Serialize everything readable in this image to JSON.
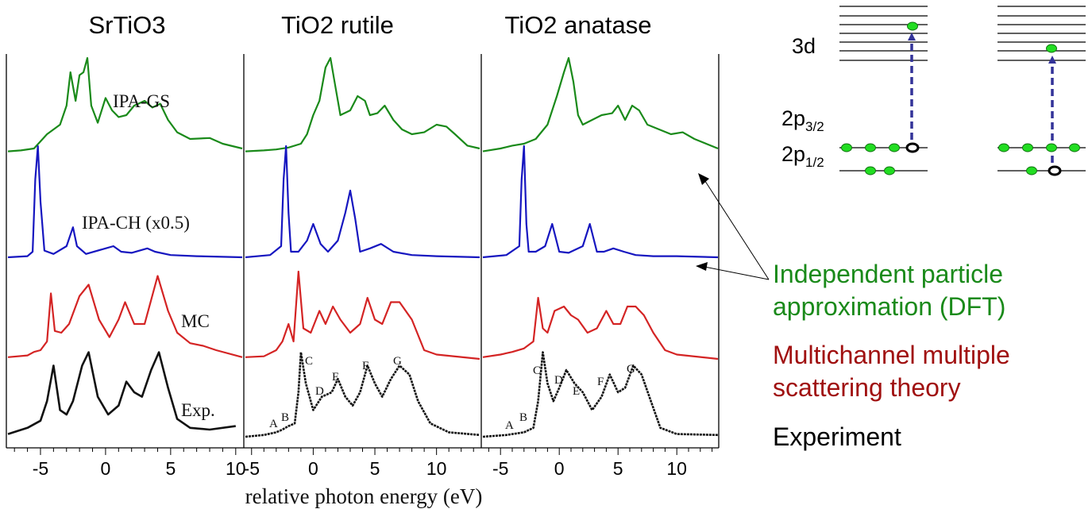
{
  "colors": {
    "ipa_gs": "#1a8a1a",
    "ipa_ch": "#1616c0",
    "mc": "#d42424",
    "exp": "#111111",
    "transition_arrow": "#333399",
    "electron": "#22dd22"
  },
  "chart_data": {
    "type": "line",
    "xlabel": "relative photon energy (eV)",
    "panels": [
      {
        "title": "SrTiO3",
        "xlim": [
          -7.5,
          10.5
        ],
        "xticks": [
          "-5",
          "0",
          "5",
          "10"
        ],
        "annotations": {
          "ipa_gs": "IPA-GS",
          "ipa_ch": "IPA-CH (x0.5)",
          "mc": "MC",
          "exp": "Exp."
        },
        "series": [
          {
            "name": "IPA-GS",
            "x": [
              -7.5,
              -6.5,
              -5.5,
              -4.5,
              -3.5,
              -3,
              -2.7,
              -2.3,
              -2,
              -1.7,
              -1.4,
              -1.1,
              -0.6,
              0,
              0.5,
              1,
              1.6,
              2.2,
              3,
              3.6,
              4.2,
              4.8,
              5.5,
              6.5,
              8,
              9,
              10.5
            ],
            "y": [
              0.02,
              0.03,
              0.05,
              0.2,
              0.3,
              0.5,
              0.85,
              0.55,
              0.82,
              0.85,
              1.0,
              0.5,
              0.32,
              0.58,
              0.45,
              0.38,
              0.4,
              0.5,
              0.55,
              0.48,
              0.52,
              0.35,
              0.22,
              0.15,
              0.16,
              0.1,
              0.05
            ]
          },
          {
            "name": "IPA-CH (x0.5)",
            "x": [
              -7.5,
              -6,
              -5.6,
              -5.4,
              -5.2,
              -5,
              -4.7,
              -4,
              -3,
              -2.5,
              -2.2,
              -1.5,
              0,
              0.6,
              1.2,
              2,
              3.2,
              3.8,
              5,
              7,
              10.5
            ],
            "y": [
              0.0,
              0.01,
              0.05,
              0.7,
              1.0,
              0.5,
              0.06,
              0.03,
              0.1,
              0.27,
              0.1,
              0.03,
              0.08,
              0.1,
              0.05,
              0.04,
              0.08,
              0.05,
              0.02,
              0.01,
              0.0
            ]
          },
          {
            "name": "MC",
            "x": [
              -7.5,
              -6,
              -5.5,
              -5,
              -4.5,
              -4.2,
              -3.9,
              -3.4,
              -2.8,
              -2,
              -1.3,
              -0.5,
              0.3,
              1,
              1.5,
              2.2,
              3,
              4,
              4.8,
              5.5,
              6.5,
              7.5,
              8.5,
              10.5
            ],
            "y": [
              0.02,
              0.04,
              0.08,
              0.1,
              0.2,
              0.75,
              0.32,
              0.3,
              0.4,
              0.72,
              0.85,
              0.45,
              0.25,
              0.45,
              0.65,
              0.4,
              0.4,
              0.95,
              0.55,
              0.3,
              0.18,
              0.15,
              0.1,
              0.02
            ]
          },
          {
            "name": "Exp.",
            "x": [
              -7.5,
              -6,
              -5,
              -4.5,
              -4,
              -3.5,
              -3,
              -2.5,
              -1.8,
              -1.3,
              -0.6,
              0.2,
              1,
              1.6,
              2.2,
              2.8,
              3.5,
              4.1,
              4.8,
              5.5,
              6.5,
              8,
              10
            ],
            "y": [
              0.03,
              0.1,
              0.18,
              0.4,
              0.8,
              0.3,
              0.25,
              0.4,
              0.8,
              0.95,
              0.45,
              0.25,
              0.35,
              0.62,
              0.5,
              0.45,
              0.75,
              0.95,
              0.55,
              0.2,
              0.1,
              0.08,
              0.12
            ]
          }
        ]
      },
      {
        "title": "TiO2 rutile",
        "xlim": [
          -5.5,
          13.5
        ],
        "xticks": [
          "-5",
          "0",
          "5",
          "10"
        ],
        "exp_labels": [
          "A",
          "B",
          "C",
          "D",
          "E",
          "F",
          "G"
        ],
        "series": [
          {
            "name": "IPA-GS",
            "x": [
              -5.5,
              -4,
              -3,
              -2,
              -1,
              -0.5,
              0,
              0.5,
              1,
              1.4,
              1.8,
              2.2,
              3,
              3.6,
              4.2,
              4.6,
              5.2,
              5.8,
              6.5,
              7.2,
              8,
              9,
              10,
              10.8,
              11.5,
              12.5,
              13.5
            ],
            "y": [
              0.02,
              0.03,
              0.04,
              0.06,
              0.1,
              0.2,
              0.4,
              0.55,
              0.9,
              1.0,
              0.7,
              0.4,
              0.45,
              0.6,
              0.55,
              0.4,
              0.42,
              0.5,
              0.35,
              0.25,
              0.2,
              0.22,
              0.3,
              0.28,
              0.2,
              0.08,
              0.05
            ]
          },
          {
            "name": "IPA-CH (x0.5)",
            "x": [
              -5.5,
              -3.5,
              -2.6,
              -2.4,
              -2.2,
              -2,
              -1.8,
              -1.2,
              -0.5,
              0,
              0.6,
              1.2,
              2,
              2.6,
              3,
              3.4,
              3.8,
              4.6,
              5.5,
              6.5,
              8,
              10,
              13.5
            ],
            "y": [
              0.0,
              0.02,
              0.1,
              0.7,
              1.0,
              0.4,
              0.05,
              0.05,
              0.15,
              0.3,
              0.12,
              0.05,
              0.15,
              0.4,
              0.6,
              0.35,
              0.05,
              0.08,
              0.12,
              0.05,
              0.02,
              0.01,
              0.0
            ]
          },
          {
            "name": "MC",
            "x": [
              -5.5,
              -4,
              -3,
              -2.5,
              -2,
              -1.6,
              -1.2,
              -0.8,
              -0.2,
              0.5,
              1,
              1.6,
              2.2,
              3,
              3.8,
              4.4,
              5,
              5.6,
              6.3,
              7,
              8,
              9,
              10,
              13.5
            ],
            "y": [
              0.02,
              0.03,
              0.1,
              0.2,
              0.4,
              0.2,
              1.0,
              0.35,
              0.3,
              0.55,
              0.4,
              0.6,
              0.45,
              0.3,
              0.4,
              0.7,
              0.45,
              0.4,
              0.65,
              0.65,
              0.45,
              0.1,
              0.05,
              0.0
            ]
          },
          {
            "name": "Exp.",
            "x": [
              -5.5,
              -4,
              -3,
              -2.5,
              -2,
              -1.5,
              -1.2,
              -1,
              -0.6,
              0,
              0.7,
              1.5,
              2,
              2.6,
              3.2,
              3.8,
              4.4,
              5,
              5.6,
              6.3,
              7,
              7.8,
              8.5,
              9.5,
              11,
              13.5
            ],
            "y": [
              0.0,
              0.02,
              0.05,
              0.08,
              0.12,
              0.15,
              0.5,
              0.95,
              0.6,
              0.3,
              0.45,
              0.5,
              0.65,
              0.45,
              0.35,
              0.5,
              0.8,
              0.6,
              0.45,
              0.65,
              0.8,
              0.7,
              0.4,
              0.15,
              0.05,
              0.02
            ]
          }
        ]
      },
      {
        "title": "TiO2 anatase",
        "xlim": [
          -6.5,
          13.5
        ],
        "xticks": [
          "-5",
          "0",
          "5",
          "10"
        ],
        "exp_labels": [
          "A",
          "B",
          "C",
          "D",
          "E",
          "F",
          "G"
        ],
        "series": [
          {
            "name": "IPA-GS",
            "x": [
              -6.5,
              -5,
              -4,
              -3,
              -2,
              -1,
              -0.2,
              0.4,
              0.8,
              1.2,
              1.6,
              2,
              2.8,
              3.6,
              4.5,
              5,
              5.6,
              6.2,
              6.8,
              7.5,
              8.5,
              9.5,
              10.5,
              11.5,
              13.5
            ],
            "y": [
              0.02,
              0.05,
              0.08,
              0.1,
              0.15,
              0.3,
              0.6,
              0.85,
              1.0,
              0.75,
              0.4,
              0.3,
              0.35,
              0.4,
              0.42,
              0.5,
              0.35,
              0.5,
              0.45,
              0.3,
              0.25,
              0.2,
              0.22,
              0.15,
              0.05
            ]
          },
          {
            "name": "IPA-CH (x0.5)",
            "x": [
              -6.5,
              -4.5,
              -3.4,
              -3.2,
              -3,
              -2.8,
              -2.6,
              -2,
              -1.2,
              -0.6,
              0,
              0.8,
              2,
              2.6,
              3.2,
              3.8,
              4.6,
              5.5,
              6.5,
              8,
              10,
              13.5
            ],
            "y": [
              0.0,
              0.02,
              0.1,
              0.7,
              1.0,
              0.3,
              0.05,
              0.05,
              0.1,
              0.3,
              0.05,
              0.04,
              0.1,
              0.3,
              0.05,
              0.05,
              0.08,
              0.05,
              0.02,
              0.01,
              0.01,
              0.0
            ]
          },
          {
            "name": "MC",
            "x": [
              -6.5,
              -5,
              -4,
              -3,
              -2.2,
              -1.8,
              -1.4,
              -1,
              -0.4,
              0.4,
              1,
              1.6,
              2.4,
              3.2,
              4,
              4.6,
              5.2,
              5.8,
              6.5,
              7.2,
              8,
              9,
              10,
              13.5
            ],
            "y": [
              0.02,
              0.05,
              0.08,
              0.12,
              0.2,
              0.7,
              0.35,
              0.3,
              0.55,
              0.6,
              0.5,
              0.45,
              0.3,
              0.35,
              0.55,
              0.4,
              0.4,
              0.6,
              0.6,
              0.5,
              0.3,
              0.1,
              0.05,
              0.0
            ]
          },
          {
            "name": "Exp.",
            "x": [
              -6.5,
              -4.5,
              -3,
              -2.2,
              -1.8,
              -1.4,
              -1,
              -0.5,
              0,
              0.6,
              1.3,
              2,
              2.8,
              3.6,
              4.3,
              5,
              5.6,
              6.3,
              7,
              7.8,
              8.6,
              10,
              13.5
            ],
            "y": [
              0.0,
              0.02,
              0.05,
              0.1,
              0.4,
              0.95,
              0.6,
              0.4,
              0.55,
              0.75,
              0.6,
              0.5,
              0.3,
              0.45,
              0.7,
              0.5,
              0.55,
              0.8,
              0.7,
              0.4,
              0.1,
              0.03,
              0.02
            ]
          }
        ]
      }
    ]
  },
  "level_diagram": {
    "labels": {
      "d3": "3d",
      "p32_main": "2p",
      "p32_sub": "3/2",
      "p12_main": "2p",
      "p12_sub": "1/2"
    }
  },
  "legend": {
    "ipa_line1": "Independent particle",
    "ipa_line2": "approximation (DFT)",
    "mc_line1": "Multichannel multiple",
    "mc_line2": "scattering theory",
    "exp": "Experiment"
  }
}
